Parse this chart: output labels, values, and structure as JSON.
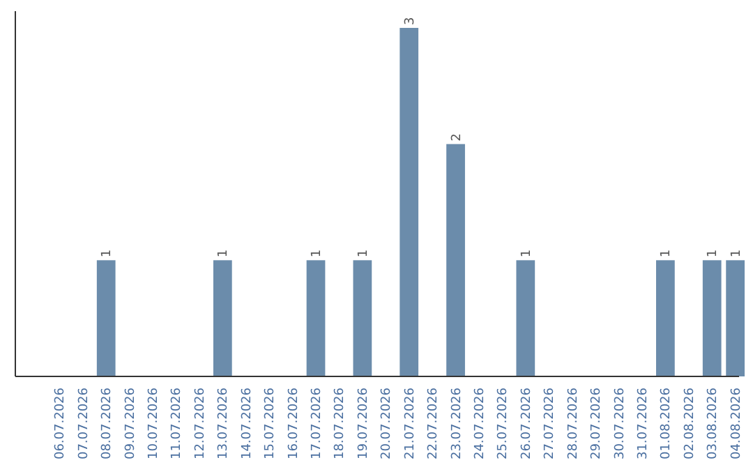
{
  "chart_data": {
    "type": "bar",
    "categories": [
      "06.07.2026",
      "07.07.2026",
      "08.07.2026",
      "09.07.2026",
      "10.07.2026",
      "11.07.2026",
      "12.07.2026",
      "13.07.2026",
      "14.07.2026",
      "15.07.2026",
      "16.07.2026",
      "17.07.2026",
      "18.07.2026",
      "19.07.2026",
      "20.07.2026",
      "21.07.2026",
      "22.07.2026",
      "23.07.2026",
      "24.07.2026",
      "25.07.2026",
      "26.07.2026",
      "27.07.2026",
      "28.07.2026",
      "29.07.2026",
      "30.07.2026",
      "31.07.2026",
      "01.08.2026",
      "02.08.2026",
      "03.08.2026",
      "04.08.2026"
    ],
    "values": [
      0,
      0,
      1,
      0,
      0,
      0,
      0,
      1,
      0,
      0,
      0,
      1,
      0,
      1,
      0,
      3,
      0,
      2,
      0,
      0,
      1,
      0,
      0,
      0,
      0,
      0,
      1,
      0,
      1,
      1
    ],
    "value_labels": [
      null,
      null,
      "1",
      null,
      null,
      null,
      null,
      "1",
      null,
      null,
      null,
      "1",
      null,
      "1",
      null,
      "3",
      null,
      "2",
      null,
      null,
      "1",
      null,
      null,
      null,
      null,
      null,
      "1",
      null,
      "1",
      "1"
    ],
    "color": "#6b8cab",
    "ylim": [
      0,
      3
    ],
    "tick_labels": "x"
  }
}
